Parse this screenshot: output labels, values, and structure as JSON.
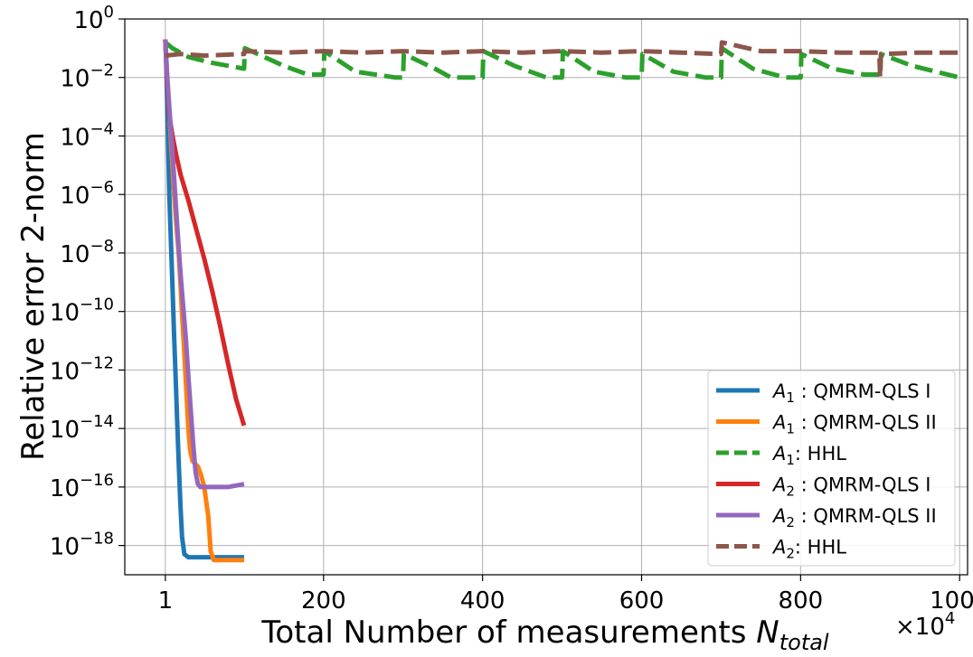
{
  "chart_data": {
    "type": "line",
    "title": "",
    "xlabel": "Total Number of measurements N_total",
    "xlabel_main": "Total Number of measurements ",
    "xlabel_symbol": "N",
    "xlabel_subscript": "total",
    "ylabel": "Relative error 2-norm",
    "x_multiplier": "×10⁴",
    "x_multiplier_base": "×10",
    "x_multiplier_exp": "4",
    "xlim": [
      -50,
      1010
    ],
    "ylim_exponent": [
      -19,
      0
    ],
    "y_scale": "log",
    "grid": true,
    "legend_position": "lower-right",
    "x_ticks": [
      {
        "value": 1,
        "label": "1"
      },
      {
        "value": 200,
        "label": "200"
      },
      {
        "value": 400,
        "label": "400"
      },
      {
        "value": 600,
        "label": "600"
      },
      {
        "value": 800,
        "label": "800"
      },
      {
        "value": 1000,
        "label": "1000"
      }
    ],
    "y_ticks": [
      {
        "exp": 0,
        "base": "10",
        "sup": "0"
      },
      {
        "exp": -2,
        "base": "10",
        "sup": "−2"
      },
      {
        "exp": -4,
        "base": "10",
        "sup": "−4"
      },
      {
        "exp": -6,
        "base": "10",
        "sup": "−6"
      },
      {
        "exp": -8,
        "base": "10",
        "sup": "−8"
      },
      {
        "exp": -10,
        "base": "10",
        "sup": "−10"
      },
      {
        "exp": -12,
        "base": "10",
        "sup": "−12"
      },
      {
        "exp": -14,
        "base": "10",
        "sup": "−14"
      },
      {
        "exp": -16,
        "base": "10",
        "sup": "−16"
      },
      {
        "exp": -18,
        "base": "10",
        "sup": "−18"
      }
    ],
    "series": [
      {
        "name": "A1 : QMRM-QLS I",
        "matrix": "A",
        "sub": "1",
        "suffix": " : QMRM-QLS I",
        "color": "#1f77b4",
        "dash": "solid",
        "x": [
          1,
          2,
          3,
          4,
          5,
          6,
          8,
          10,
          12,
          14,
          16,
          18,
          20,
          22,
          25,
          30,
          40,
          60,
          80,
          100
        ],
        "log10_y": [
          -0.7,
          -1.4,
          -2.5,
          -3.6,
          -4.9,
          -6.0,
          -7.6,
          -9.2,
          -10.8,
          -12.3,
          -13.8,
          -15.3,
          -16.6,
          -17.7,
          -18.3,
          -18.4,
          -18.4,
          -18.4,
          -18.4,
          -18.4
        ]
      },
      {
        "name": "A1 : QMRM-QLS II",
        "matrix": "A",
        "sub": "1",
        "suffix": " : QMRM-QLS II",
        "color": "#ff7f0e",
        "dash": "solid",
        "x": [
          1,
          3,
          6,
          9,
          12,
          15,
          18,
          20,
          22,
          24,
          26,
          28,
          30,
          32,
          35,
          38,
          42,
          46,
          50,
          55,
          58,
          62,
          70,
          80,
          100
        ],
        "log10_y": [
          -0.7,
          -1.8,
          -3.2,
          -4.6,
          -6.0,
          -7.1,
          -8.1,
          -9.0,
          -10.1,
          -11.0,
          -12.0,
          -13.0,
          -14.0,
          -14.7,
          -15.1,
          -15.2,
          -15.3,
          -15.6,
          -16.0,
          -17.0,
          -18.2,
          -18.5,
          -18.5,
          -18.5,
          -18.5
        ]
      },
      {
        "name": "A1: HHL",
        "matrix": "A",
        "sub": "1",
        "suffix": ": HHL",
        "color": "#2ca02c",
        "dash": "dashed",
        "x": [
          1,
          10,
          30,
          60,
          100,
          101,
          150,
          180,
          200,
          201,
          240,
          290,
          300,
          301,
          340,
          360,
          400,
          401,
          440,
          480,
          500,
          501,
          540,
          580,
          600,
          601,
          640,
          680,
          700,
          701,
          740,
          780,
          800,
          801,
          840,
          880,
          900,
          901,
          940,
          1000
        ],
        "log10_y": [
          -0.8,
          -1.0,
          -1.3,
          -1.5,
          -1.7,
          -1.0,
          -1.6,
          -1.9,
          -1.9,
          -1.1,
          -1.8,
          -2.0,
          -2.0,
          -1.2,
          -1.7,
          -2.0,
          -2.0,
          -1.1,
          -1.6,
          -2.0,
          -2.0,
          -1.1,
          -1.8,
          -2.0,
          -2.0,
          -1.2,
          -1.8,
          -2.0,
          -2.0,
          -1.0,
          -1.7,
          -2.0,
          -2.0,
          -1.2,
          -1.7,
          -1.9,
          -1.9,
          -1.2,
          -1.6,
          -2.0
        ]
      },
      {
        "name": "A2 : QMRM-QLS I",
        "matrix": "A",
        "sub": "2",
        "suffix": " : QMRM-QLS I",
        "color": "#d62728",
        "dash": "solid",
        "x": [
          1,
          3,
          6,
          10,
          15,
          20,
          30,
          40,
          50,
          60,
          70,
          80,
          90,
          100
        ],
        "log10_y": [
          -0.7,
          -2.0,
          -3.3,
          -4.0,
          -4.7,
          -5.3,
          -6.2,
          -7.2,
          -8.2,
          -9.3,
          -10.5,
          -11.8,
          -13.0,
          -13.9
        ]
      },
      {
        "name": "A2 : QMRM-QLS II",
        "matrix": "A",
        "sub": "2",
        "suffix": " : QMRM-QLS II",
        "color": "#9467bd",
        "dash": "solid",
        "x": [
          1,
          3,
          6,
          9,
          12,
          15,
          18,
          21,
          24,
          27,
          30,
          33,
          36,
          39,
          42,
          45,
          50,
          60,
          80,
          100
        ],
        "log10_y": [
          -0.7,
          -1.8,
          -3.0,
          -4.2,
          -5.4,
          -6.7,
          -7.9,
          -9.0,
          -10.0,
          -11.0,
          -12.2,
          -13.4,
          -14.5,
          -15.5,
          -15.9,
          -16.0,
          -16.0,
          -16.0,
          -16.0,
          -15.9
        ]
      },
      {
        "name": "A2: HHL",
        "matrix": "A",
        "sub": "2",
        "suffix": ": HHL",
        "color": "#8c564b",
        "dash": "dashed",
        "x": [
          1,
          20,
          50,
          100,
          101,
          150,
          200,
          250,
          300,
          350,
          400,
          450,
          500,
          550,
          600,
          650,
          700,
          701,
          750,
          800,
          850,
          899,
          900,
          901,
          950,
          1000
        ],
        "log10_y": [
          -1.25,
          -1.2,
          -1.25,
          -1.2,
          -1.1,
          -1.15,
          -1.1,
          -1.15,
          -1.1,
          -1.15,
          -1.1,
          -1.15,
          -1.1,
          -1.15,
          -1.1,
          -1.15,
          -1.2,
          -0.8,
          -1.1,
          -1.1,
          -1.15,
          -1.15,
          -2.0,
          -1.2,
          -1.15,
          -1.15
        ]
      }
    ]
  }
}
